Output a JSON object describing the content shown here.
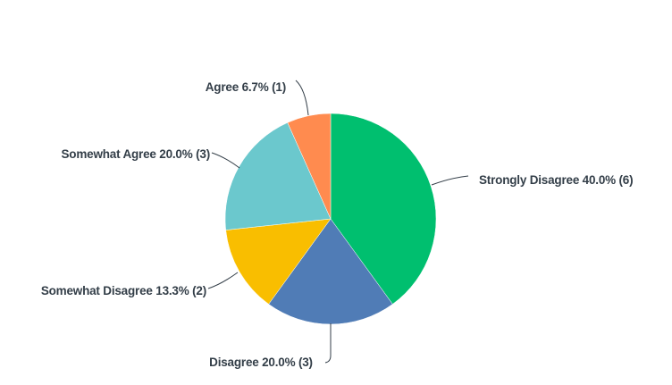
{
  "chart_data": {
    "type": "pie",
    "start_angle": "top, clockwise",
    "slices": [
      {
        "label": "Strongly Disagree",
        "percent": 40.0,
        "count": 6,
        "text": "Strongly Disagree 40.0% (6)",
        "color": "#00bf6f"
      },
      {
        "label": "Disagree",
        "percent": 20.0,
        "count": 3,
        "text": "Disagree 20.0% (3)",
        "color": "#507cb6"
      },
      {
        "label": "Somewhat Disagree",
        "percent": 13.3,
        "count": 2,
        "text": "Somewhat Disagree 13.3% (2)",
        "color": "#f9be00"
      },
      {
        "label": "Somewhat Agree",
        "percent": 20.0,
        "count": 3,
        "text": "Somewhat Agree 20.0% (3)",
        "color": "#6bc8cd"
      },
      {
        "label": "Agree",
        "percent": 6.7,
        "count": 1,
        "text": "Agree 6.7% (1)",
        "color": "#ff8b4f"
      }
    ]
  }
}
